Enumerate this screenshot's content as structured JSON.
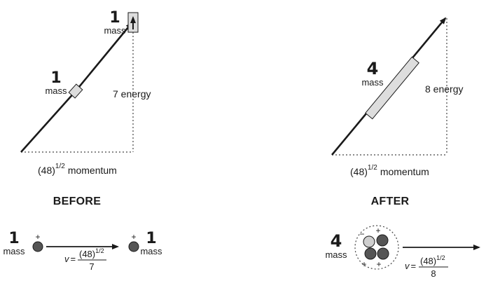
{
  "before": {
    "heading": "BEFORE",
    "diagram": {
      "particle_top": {
        "number": "1",
        "unit": "mass"
      },
      "particle_mid": {
        "number": "1",
        "unit": "mass"
      },
      "energy_label": "7 energy",
      "momentum_label": {
        "base": "(48)",
        "exponent": "1/2",
        "word": "momentum"
      }
    },
    "collision": {
      "left_particle": {
        "number": "1",
        "unit": "mass",
        "charge": "+"
      },
      "right_particle": {
        "number": "1",
        "unit": "mass",
        "charge": "+"
      },
      "velocity": {
        "symbol": "v",
        "equals": "=",
        "numerator": "(48)",
        "exponent": "1/2",
        "denominator": "7"
      }
    }
  },
  "after": {
    "heading": "AFTER",
    "diagram": {
      "particle": {
        "number": "4",
        "unit": "mass"
      },
      "energy_label": "8 energy",
      "momentum_label": {
        "base": "(48)",
        "exponent": "1/2",
        "word": "momentum"
      }
    },
    "collision": {
      "particle": {
        "number": "4",
        "unit": "mass",
        "charges": [
          "+",
          "+",
          "+",
          "−"
        ]
      },
      "velocity": {
        "symbol": "v",
        "equals": "=",
        "numerator": "(48)",
        "exponent": "1/2",
        "denominator": "8"
      }
    }
  },
  "colors": {
    "ink": "#1a1a1a",
    "particle_dark": "#555555",
    "particle_light": "#cfcfcf",
    "dotted": "#444444"
  }
}
